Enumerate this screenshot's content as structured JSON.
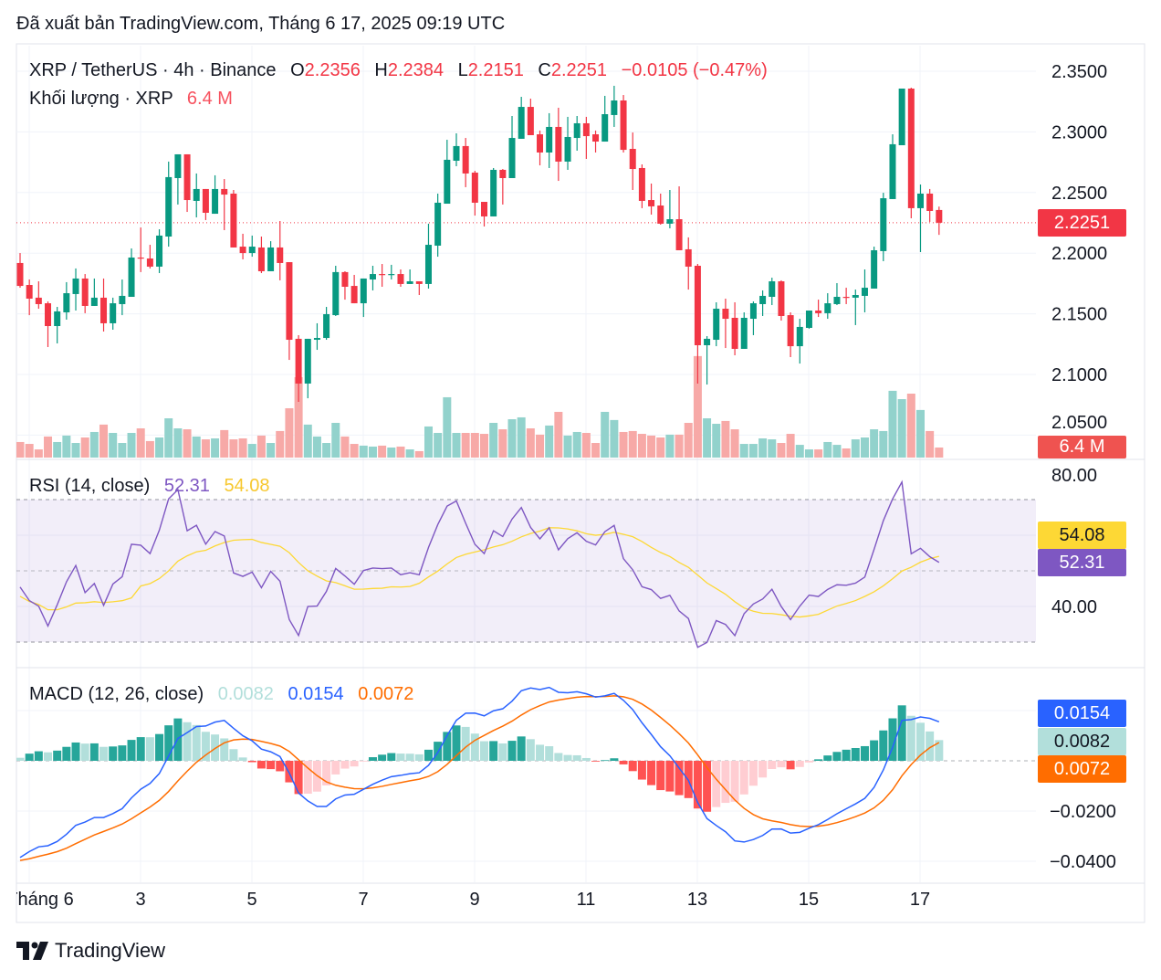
{
  "published": "Đã xuất bản TradingView.com, Tháng 6 17, 2025 09:19 UTC",
  "legend": {
    "symbol": "XRP / TetherUS · 4h · Binance",
    "ohlc": [
      {
        "k": "O",
        "v": "2.2356"
      },
      {
        "k": "H",
        "v": "2.2384"
      },
      {
        "k": "L",
        "v": "2.2151"
      },
      {
        "k": "C",
        "v": "2.2251"
      }
    ],
    "change": "−0.0105 (−0.47%)",
    "volume_label": "Khối lượng · XRP",
    "volume_value": "6.4 M"
  },
  "rsi_legend": {
    "label": "RSI (14, close)",
    "rsi": "52.31",
    "ma": "54.08"
  },
  "macd_legend": {
    "label": "MACD (12, 26, close)",
    "histogram": "0.0082",
    "macd": "0.0154",
    "signal": "0.0072"
  },
  "tags": {
    "price": "2.2251",
    "volume": "6.4 M",
    "rsi_ma": "54.08",
    "rsi": "52.31",
    "macd": "0.0154",
    "histogram": "0.0082",
    "signal": "0.0072"
  },
  "footer": {
    "brand": "TradingView"
  },
  "colors": {
    "up": "#089981",
    "down": "#f23645",
    "vol_up": "#92d2cc",
    "vol_down": "#f7a9a7",
    "rsi": "#7e57c2",
    "rsi_ma": "#fdd835",
    "macd": "#2962ff",
    "signal": "#ff6d00",
    "hist_up_strong": "#26a69a",
    "hist_up_weak": "#b2dfdb",
    "hist_down_strong": "#ff5252",
    "hist_down_weak": "#ffcdd2"
  },
  "chart_data": {
    "type": "candlestick",
    "title": "XRP / TetherUS · 4h · Binance",
    "price_axis_ticks": [
      "2.3500",
      "2.3000",
      "2.2500",
      "2.2000",
      "2.1500",
      "2.1000",
      "2.0500"
    ],
    "price_ylim": [
      2.033,
      2.37
    ],
    "last_price": 2.2251,
    "time_axis_ticks": [
      {
        "label": "Tháng 6",
        "day": 1
      },
      {
        "label": "3",
        "day": 3
      },
      {
        "label": "5",
        "day": 5
      },
      {
        "label": "7",
        "day": 7
      },
      {
        "label": "9",
        "day": 9
      },
      {
        "label": "11",
        "day": 11
      },
      {
        "label": "13",
        "day": 13
      },
      {
        "label": "15",
        "day": 15
      },
      {
        "label": "17",
        "day": 17
      }
    ],
    "columns": [
      "open",
      "high",
      "low",
      "close"
    ],
    "candles": [
      [
        2.1919,
        2.2001,
        2.1715,
        2.173
      ],
      [
        2.1738,
        2.1783,
        2.1489,
        2.1625
      ],
      [
        2.1633,
        2.1768,
        2.1542,
        2.158
      ],
      [
        2.1587,
        2.1602,
        2.1226,
        2.1399
      ],
      [
        2.1399,
        2.1557,
        2.1256,
        2.152
      ],
      [
        2.1512,
        2.1761,
        2.1452,
        2.167
      ],
      [
        2.1663,
        2.1874,
        2.1527,
        2.1791
      ],
      [
        2.1791,
        2.1828,
        2.1505,
        2.1565
      ],
      [
        2.1565,
        2.1791,
        2.1565,
        2.1633
      ],
      [
        2.1633,
        2.1791,
        2.1354,
        2.1422
      ],
      [
        2.1422,
        2.1633,
        2.1369,
        2.1587
      ],
      [
        2.158,
        2.1783,
        2.1489,
        2.1648
      ],
      [
        2.164,
        2.2039,
        2.164,
        2.1964
      ],
      [
        2.1964,
        2.2212,
        2.1844,
        2.1956
      ],
      [
        2.1956,
        2.2069,
        2.1874,
        2.1889
      ],
      [
        2.1889,
        2.2197,
        2.1836,
        2.2145
      ],
      [
        2.2137,
        2.2755,
        2.2054,
        2.2627
      ],
      [
        2.2619,
        2.2815,
        2.2401,
        2.2815
      ],
      [
        2.2815,
        2.2815,
        2.234,
        2.2438
      ],
      [
        2.2431,
        2.2657,
        2.2295,
        2.2529
      ],
      [
        2.2529,
        2.2529,
        2.2273,
        2.2333
      ],
      [
        2.2325,
        2.2642,
        2.2325,
        2.2529
      ],
      [
        2.2529,
        2.2611,
        2.219,
        2.2483
      ],
      [
        2.2491,
        2.2521,
        2.2047,
        2.2047
      ],
      [
        2.2054,
        2.216,
        2.1949,
        2.2001
      ],
      [
        2.2001,
        2.2145,
        2.1971,
        2.2054
      ],
      [
        2.2047,
        2.2137,
        2.1836,
        2.1851
      ],
      [
        2.1851,
        2.2099,
        2.1851,
        2.2047
      ],
      [
        2.2047,
        2.2265,
        2.1776,
        2.1919
      ],
      [
        2.1926,
        2.1926,
        2.112,
        2.1286
      ],
      [
        2.1294,
        2.1324,
        2.0774,
        2.0925
      ],
      [
        2.0925,
        2.1294,
        2.0804,
        2.1294
      ],
      [
        2.1286,
        2.1422,
        2.1203,
        2.1301
      ],
      [
        2.1301,
        2.1557,
        2.1286,
        2.1497
      ],
      [
        2.1489,
        2.1896,
        2.1482,
        2.1844
      ],
      [
        2.1844,
        2.1851,
        2.1617,
        2.1723
      ],
      [
        2.173,
        2.1821,
        2.1587,
        2.1587
      ],
      [
        2.1587,
        2.1791,
        2.1474,
        2.1791
      ],
      [
        2.1783,
        2.1896,
        2.1693,
        2.1828
      ],
      [
        2.1828,
        2.1911,
        2.1723,
        2.1821
      ],
      [
        2.1821,
        2.1904,
        2.1783,
        2.1828
      ],
      [
        2.1828,
        2.1866,
        2.1723,
        2.1746
      ],
      [
        2.1746,
        2.1866,
        2.1746,
        2.1768
      ],
      [
        2.1768,
        2.1768,
        2.1655,
        2.1746
      ],
      [
        2.1746,
        2.2243,
        2.1708,
        2.2069
      ],
      [
        2.2062,
        2.2491,
        2.1971,
        2.2416
      ],
      [
        2.2408,
        2.2935,
        2.2408,
        2.277
      ],
      [
        2.2762,
        2.2988,
        2.2717,
        2.2883
      ],
      [
        2.2883,
        2.295,
        2.2544,
        2.2657
      ],
      [
        2.2664,
        2.2679,
        2.231,
        2.2416
      ],
      [
        2.2423,
        2.2423,
        2.222,
        2.2303
      ],
      [
        2.2303,
        2.2702,
        2.2303,
        2.2687
      ],
      [
        2.2687,
        2.2694,
        2.2401,
        2.2619
      ],
      [
        2.2619,
        2.3131,
        2.2619,
        2.295
      ],
      [
        2.2943,
        2.3289,
        2.2943,
        2.3206
      ],
      [
        2.3206,
        2.3274,
        2.2973,
        2.2973
      ],
      [
        2.298,
        2.3011,
        2.2724,
        2.283
      ],
      [
        2.283,
        2.3154,
        2.2702,
        2.3041
      ],
      [
        2.3041,
        2.3199,
        2.2596,
        2.2755
      ],
      [
        2.2755,
        2.3124,
        2.2687,
        2.2958
      ],
      [
        2.295,
        2.3131,
        2.2845,
        2.3071
      ],
      [
        2.3071,
        2.3124,
        2.2777,
        2.2965
      ],
      [
        2.298,
        2.3011,
        2.283,
        2.292
      ],
      [
        2.292,
        2.3297,
        2.292,
        2.3146
      ],
      [
        2.3139,
        2.338,
        2.3041,
        2.3259
      ],
      [
        2.3259,
        2.3304,
        2.283,
        2.2852
      ],
      [
        2.286,
        2.2995,
        2.2521,
        2.2694
      ],
      [
        2.2702,
        2.2732,
        2.2371,
        2.2431
      ],
      [
        2.2438,
        2.2574,
        2.2318,
        2.2386
      ],
      [
        2.2393,
        2.2491,
        2.2235,
        2.2243
      ],
      [
        2.2243,
        2.2521,
        2.2205,
        2.228
      ],
      [
        2.228,
        2.2551,
        2.2024,
        2.2024
      ],
      [
        2.2032,
        2.213,
        2.17,
        2.1889
      ],
      [
        2.1896,
        2.1911,
        2.0925,
        2.1241
      ],
      [
        2.1241,
        2.1316,
        2.0917,
        2.1294
      ],
      [
        2.1286,
        2.1595,
        2.1233,
        2.1542
      ],
      [
        2.1542,
        2.1625,
        2.1218,
        2.1459
      ],
      [
        2.1467,
        2.1595,
        2.1158,
        2.1211
      ],
      [
        2.1211,
        2.1512,
        2.1211,
        2.1467
      ],
      [
        2.1459,
        2.1602,
        2.1324,
        2.1587
      ],
      [
        2.158,
        2.1693,
        2.1482,
        2.1648
      ],
      [
        2.164,
        2.1798,
        2.1572,
        2.1768
      ],
      [
        2.1768,
        2.1776,
        2.1444,
        2.1482
      ],
      [
        2.1489,
        2.1512,
        2.1143,
        2.1233
      ],
      [
        2.1233,
        2.1459,
        2.109,
        2.1392
      ],
      [
        2.1384,
        2.1527,
        2.1377,
        2.1527
      ],
      [
        2.1527,
        2.1617,
        2.1474,
        2.1505
      ],
      [
        2.1505,
        2.167,
        2.1459,
        2.1587
      ],
      [
        2.158,
        2.1753,
        2.1572,
        2.164
      ],
      [
        2.164,
        2.1715,
        2.158,
        2.1633
      ],
      [
        2.1633,
        2.17,
        2.1407,
        2.1655
      ],
      [
        2.1648,
        2.1866,
        2.1512,
        2.1715
      ],
      [
        2.1708,
        2.2054,
        2.1708,
        2.2024
      ],
      [
        2.2017,
        2.2498,
        2.1934,
        2.2453
      ],
      [
        2.2446,
        2.298,
        2.2446,
        2.2898
      ],
      [
        2.289,
        2.3357,
        2.289,
        2.3357
      ],
      [
        2.3357,
        2.3364,
        2.2288,
        2.2371
      ],
      [
        2.2371,
        2.2566,
        2.2009,
        2.2491
      ],
      [
        2.2491,
        2.2529,
        2.2258,
        2.2348
      ],
      [
        2.2356,
        2.2384,
        2.2151,
        2.2251
      ]
    ],
    "volume_millions": [
      9.9,
      8.7,
      5.2,
      13.4,
      9.9,
      14.0,
      9.3,
      12.8,
      16.3,
      21.0,
      15.7,
      9.3,
      15.7,
      18.6,
      10.5,
      12.8,
      25.0,
      18.6,
      18.0,
      13.4,
      11.6,
      12.2,
      17.5,
      11.6,
      12.2,
      8.7,
      14.0,
      9.3,
      16.9,
      31.4,
      51.2,
      21.0,
      13.4,
      9.3,
      22.1,
      13.4,
      8.7,
      7.6,
      7.0,
      7.6,
      6.4,
      7.0,
      5.2,
      4.1,
      19.8,
      15.7,
      38.4,
      15.7,
      15.7,
      15.7,
      15.1,
      22.1,
      18.0,
      24.4,
      25.6,
      18.6,
      14.6,
      20.4,
      29.1,
      14.0,
      16.3,
      15.7,
      9.3,
      29.1,
      23.9,
      16.3,
      16.9,
      15.1,
      14.0,
      12.8,
      14.6,
      14.6,
      22.1,
      64.6,
      25.0,
      21.5,
      23.3,
      18.0,
      8.7,
      8.7,
      12.2,
      11.6,
      9.3,
      15.1,
      8.1,
      5.2,
      5.2,
      9.9,
      8.1,
      5.8,
      11.6,
      12.8,
      18.0,
      16.9,
      42.5,
      37.2,
      40.7,
      30.3,
      16.9,
      6.4
    ],
    "rsi": {
      "period": 14,
      "ma_period": 14,
      "axis_ticks": [
        "80.00",
        "40.00"
      ],
      "band": [
        30,
        70
      ],
      "ylim": [
        25.5,
        80
      ]
    },
    "macd": {
      "fast": 12,
      "slow": 26,
      "signal": 9,
      "axis_ticks": [
        "−0.0200",
        "−0.0400"
      ],
      "ylim": [
        -0.0485,
        0.037
      ]
    }
  }
}
